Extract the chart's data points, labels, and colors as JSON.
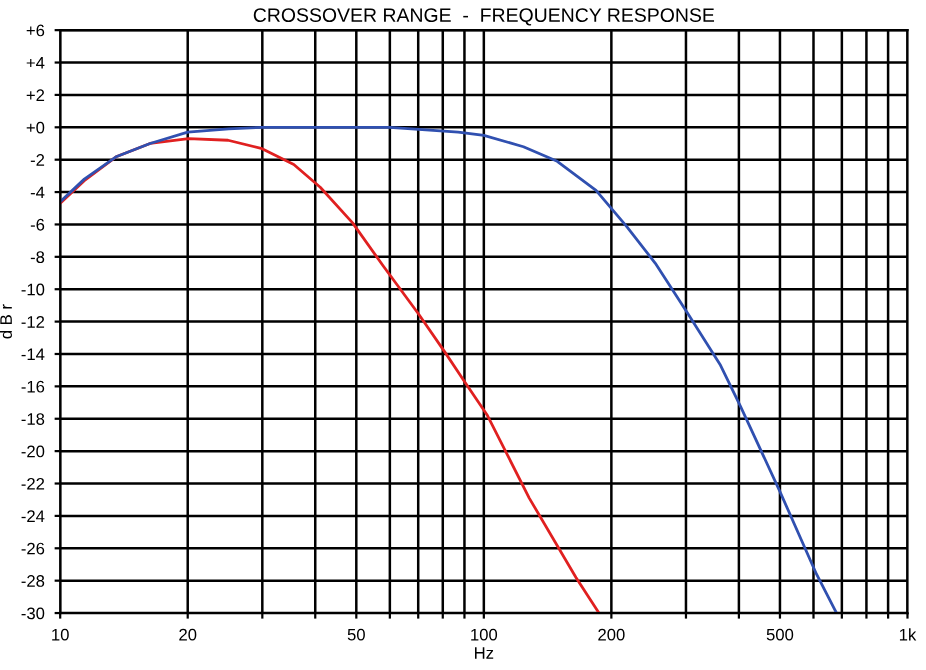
{
  "chart_data": {
    "type": "line",
    "title": "CROSSOVER RANGE  -  FREQUENCY RESPONSE",
    "xlabel": "Hz",
    "ylabel": "d B r",
    "log": "x",
    "grid": true,
    "marker": "none",
    "line_style": "solid",
    "xlim": [
      10,
      1000
    ],
    "ylim": [
      -30,
      6
    ],
    "xticks": [
      10,
      20,
      {
        "value": 30,
        "label": null
      },
      {
        "value": 40,
        "label": null
      },
      50,
      {
        "value": 60,
        "label": null
      },
      {
        "value": 70,
        "label": null
      },
      {
        "value": 80,
        "label": null
      },
      {
        "value": 90,
        "label": null
      },
      100,
      200,
      {
        "value": 300,
        "label": null
      },
      {
        "value": 400,
        "label": null
      },
      500,
      {
        "value": 600,
        "label": null
      },
      {
        "value": 700,
        "label": null
      },
      {
        "value": 800,
        "label": null
      },
      {
        "value": 900,
        "label": null
      },
      {
        "value": 1000,
        "label": "1k"
      }
    ],
    "yticks": [
      {
        "value": 6,
        "label": "+6"
      },
      {
        "value": 4,
        "label": "+4"
      },
      {
        "value": 2,
        "label": "+2"
      },
      {
        "value": 0,
        "label": "+0"
      },
      -2,
      -4,
      -6,
      -8,
      -10,
      -12,
      -14,
      -16,
      -18,
      -20,
      -22,
      -24,
      -26,
      -28,
      -30
    ],
    "series": [
      {
        "color": "#e02020",
        "x": [
          10,
          11.4,
          13.6,
          16.3,
          20.1,
          24.9,
          29.8,
          35.6,
          41.1,
          49,
          58,
          70,
          81,
          90,
          102,
          128,
          165,
          187
        ],
        "values": [
          -4.7,
          -3.3,
          -1.8,
          -1.0,
          -0.7,
          -0.8,
          -1.3,
          -2.3,
          -3.7,
          -5.9,
          -8.6,
          -11.5,
          -13.9,
          -15.7,
          -17.8,
          -22.9,
          -27.8,
          -30.0
        ]
      },
      {
        "color": "#3050b0",
        "x": [
          10,
          11.4,
          13.6,
          16.3,
          20,
          25,
          30,
          60,
          87,
          100,
          124,
          149,
          184,
          217,
          254,
          303,
          362,
          403,
          500,
          610,
          680
        ],
        "values": [
          -4.6,
          -3.2,
          -1.8,
          -1.0,
          -0.3,
          -0.1,
          0,
          0,
          -0.3,
          -0.5,
          -1.2,
          -2.1,
          -3.9,
          -6.1,
          -8.4,
          -11.5,
          -14.7,
          -17.2,
          -22.5,
          -27.6,
          -30.0
        ]
      }
    ]
  }
}
